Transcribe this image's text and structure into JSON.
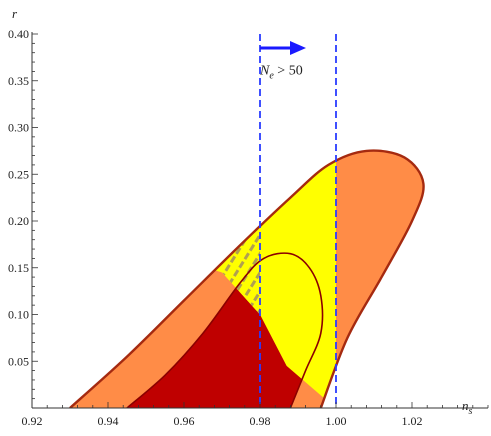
{
  "chart_data": {
    "type": "area",
    "xlabel": "n",
    "xlabel_sub": "s",
    "ylabel": "r",
    "xlim": [
      0.92,
      1.04
    ],
    "ylim": [
      0.0,
      0.4
    ],
    "x_ticks": [
      "0.92",
      "0.94",
      "0.96",
      "0.98",
      "1.00",
      "1.02"
    ],
    "x_tick_values": [
      0.92,
      0.94,
      0.96,
      0.98,
      1.0,
      1.02
    ],
    "y_ticks": [
      "0.05",
      "0.10",
      "0.15",
      "0.20",
      "0.25",
      "0.30",
      "0.35",
      "0.40"
    ],
    "y_tick_values": [
      0.05,
      0.1,
      0.15,
      0.2,
      0.25,
      0.3,
      0.35,
      0.4
    ],
    "outer_contour": [
      [
        0.93,
        0.0
      ],
      [
        0.945,
        0.055
      ],
      [
        0.96,
        0.115
      ],
      [
        0.975,
        0.175
      ],
      [
        0.988,
        0.225
      ],
      [
        0.998,
        0.26
      ],
      [
        1.008,
        0.275
      ],
      [
        1.018,
        0.268
      ],
      [
        1.023,
        0.24
      ],
      [
        1.02,
        0.2
      ],
      [
        1.012,
        0.14
      ],
      [
        1.003,
        0.075
      ],
      [
        0.996,
        0.0
      ]
    ],
    "inner_contour": [
      [
        0.945,
        0.0
      ],
      [
        0.955,
        0.035
      ],
      [
        0.965,
        0.08
      ],
      [
        0.975,
        0.135
      ],
      [
        0.981,
        0.16
      ],
      [
        0.988,
        0.165
      ],
      [
        0.993,
        0.15
      ],
      [
        0.996,
        0.12
      ],
      [
        0.996,
        0.08
      ],
      [
        0.992,
        0.04
      ],
      [
        0.988,
        0.0
      ]
    ],
    "yellow_region": [
      [
        0.968,
        0.21
      ],
      [
        0.98,
        0.24
      ],
      [
        0.992,
        0.265
      ],
      [
        1.0,
        0.275
      ],
      [
        1.0,
        0.04
      ],
      [
        0.997,
        0.01
      ],
      [
        0.987,
        0.045
      ],
      [
        0.98,
        0.1
      ],
      [
        0.97,
        0.145
      ],
      [
        0.962,
        0.155
      ]
    ],
    "hatched_region": [
      [
        0.962,
        0.155
      ],
      [
        0.968,
        0.21
      ],
      [
        0.98,
        0.24
      ],
      [
        0.98,
        0.1
      ],
      [
        0.97,
        0.145
      ]
    ],
    "vertical_lines": [
      0.98,
      1.0
    ],
    "arrow": {
      "from": [
        0.98,
        0.385
      ],
      "to": [
        0.99,
        0.385
      ]
    },
    "annotation": {
      "text_main": "N",
      "text_sub": "e",
      "text_rest": " > 50",
      "x": 0.98,
      "y": 0.36
    },
    "colors": {
      "outer_fill": "#ff8c47",
      "outer_edge": "#a52a10",
      "inner_fill": "#bf0000",
      "inner_edge": "#8b0000",
      "yellow": "#ffff00",
      "hatch": "#b0a050",
      "dashed_line": "#2a3cff",
      "arrow": "#1a1aff"
    }
  }
}
